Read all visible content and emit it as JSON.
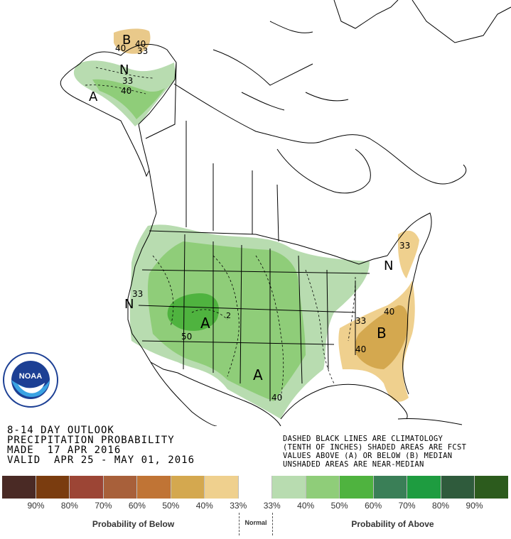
{
  "header": {
    "line1": "8-14 DAY OUTLOOK",
    "line2": "PRECIPITATION PROBABILITY",
    "line3": "MADE  17 APR 2016",
    "line4": "VALID  APR 25 - MAY 01, 2016"
  },
  "notes": {
    "line1": "DASHED BLACK LINES ARE CLIMATOLOGY",
    "line2": "(TENTH OF INCHES) SHADED AREAS ARE FCST",
    "line3": "VALUES ABOVE (A) OR BELOW (B) MEDIAN",
    "line4": "UNSHADED AREAS ARE NEAR-MEDIAN"
  },
  "map_labels": {
    "alaska_b": "B",
    "alaska_n": "N",
    "alaska_a": "A",
    "alaska_40a": "40",
    "alaska_40b": "40",
    "alaska_33a": "33",
    "alaska_33b": "33",
    "alaska_40c": "40",
    "west_n": "N",
    "west_33": "33",
    "west_a": "A",
    "west_50": "50",
    "west_2": "2",
    "south_a": "A",
    "south_40": "40",
    "ne_n": "N",
    "ne_33": "33",
    "se_b": "B",
    "se_40a": "40",
    "se_40b": "40",
    "se_33": "33"
  },
  "legend": {
    "colors": [
      "#4a2a25",
      "#7a3c0f",
      "#9c4535",
      "#a8603a",
      "#c07435",
      "#d4a84f",
      "#efd08e",
      "#ffffff",
      "#b8dcb0",
      "#8fcd79",
      "#4fb33f",
      "#3a7f57",
      "#1e9c40",
      "#2f5b3c",
      "#2c5b1d"
    ],
    "labels": [
      "90%",
      "80%",
      "70%",
      "60%",
      "50%",
      "40%",
      "33%",
      "33%",
      "40%",
      "50%",
      "60%",
      "70%",
      "80%",
      "90%"
    ],
    "below_title": "Probability of Below",
    "normal_title": "Normal",
    "above_title": "Probability of Above"
  },
  "logo": {
    "text": "NOAA",
    "ring_text": "NATIONAL OCEANIC AND ATMOSPHERIC ADMINISTRATION"
  }
}
